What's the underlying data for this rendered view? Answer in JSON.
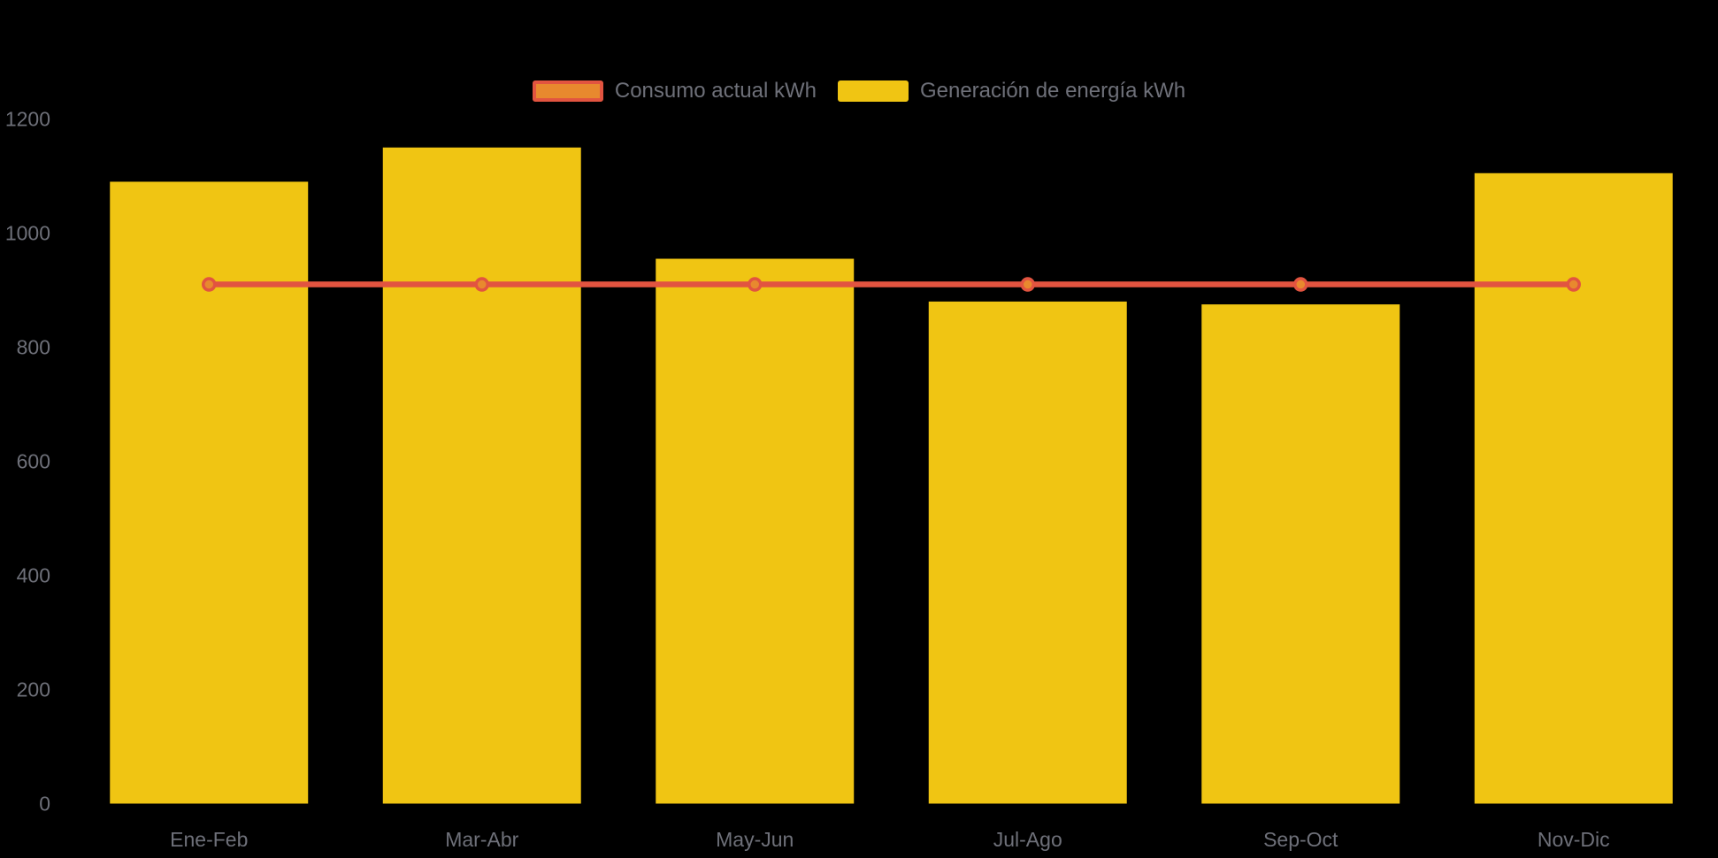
{
  "chart_data": {
    "type": "combo",
    "categories": [
      "Ene-Feb",
      "Mar-Abr",
      "May-Jun",
      "Jul-Ago",
      "Sep-Oct",
      "Nov-Dic"
    ],
    "series": [
      {
        "name": "Consumo actual kWh",
        "type": "line",
        "values": [
          910,
          910,
          910,
          910,
          910,
          910
        ],
        "color": "#E25440",
        "marker_fill": "#E8892E"
      },
      {
        "name": "Generación de energía kWh",
        "type": "bar",
        "values": [
          1090,
          1150,
          955,
          880,
          875,
          1105
        ],
        "color": "#F0C513"
      }
    ],
    "title": "",
    "xlabel": "",
    "ylabel": "",
    "ylim": [
      0,
      1200
    ],
    "y_ticks": [
      0,
      200,
      400,
      600,
      800,
      1000,
      1200
    ],
    "grid": false,
    "legend_position": "top-center",
    "background": "#000000",
    "text_color": "#6E7079"
  }
}
